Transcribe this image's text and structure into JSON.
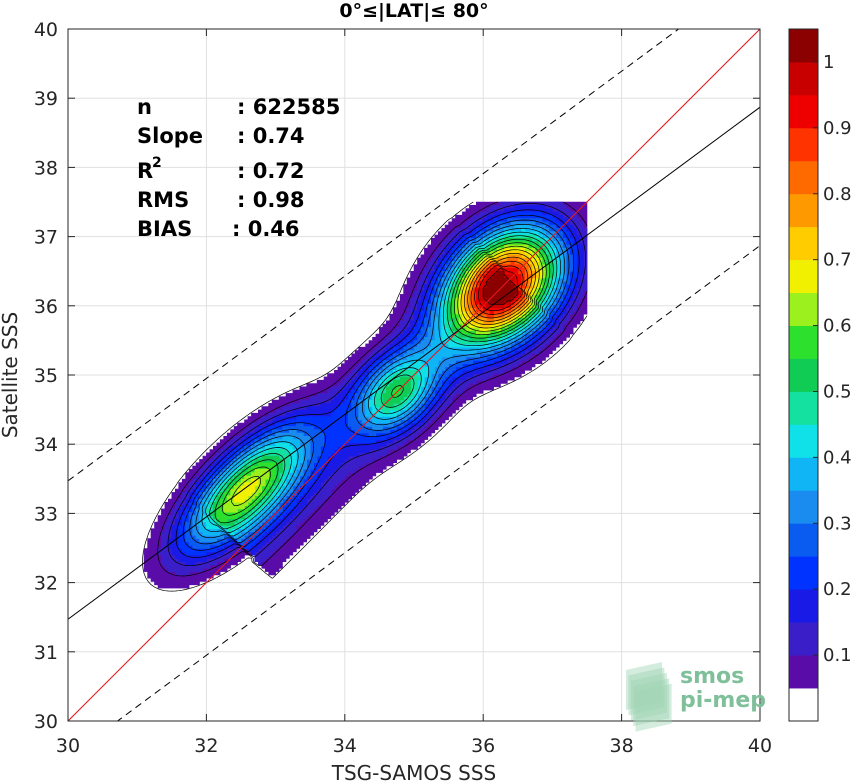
{
  "chart_data": {
    "type": "contour-scatter",
    "title": "0°≤|LAT|≤ 80°",
    "xlabel": "TSG-SAMOS SSS",
    "ylabel": "Satellite SSS",
    "xlim": [
      30,
      40
    ],
    "ylim": [
      30,
      40
    ],
    "x_ticks": [
      "30",
      "32",
      "34",
      "36",
      "38",
      "40"
    ],
    "y_ticks": [
      "30",
      "31",
      "32",
      "33",
      "34",
      "35",
      "36",
      "37",
      "38",
      "39",
      "40"
    ],
    "grid": true,
    "stats": [
      {
        "label": "n",
        "value": ": 622585"
      },
      {
        "label": "Slope",
        "value": ": 0.74"
      },
      {
        "label": "R",
        "sup": "2",
        "value": ": 0.72"
      },
      {
        "label": "RMS",
        "value": ": 0.98"
      },
      {
        "label": "BIAS",
        "value": ": 0.46"
      }
    ],
    "lines": {
      "identity": {
        "slope": 1,
        "intercept": 0,
        "color": "#e41a1c"
      },
      "regression": {
        "x": [
          30,
          40
        ],
        "y": [
          31.47,
          38.87
        ],
        "color": "#000000"
      },
      "bounds_upper": {
        "x": [
          30,
          40
        ],
        "y": [
          33.47,
          40.87
        ],
        "style": "dashed"
      },
      "bounds_lower": {
        "x": [
          30,
          40
        ],
        "y": [
          29.47,
          36.87
        ],
        "style": "dashed"
      }
    },
    "density_peaks": [
      {
        "x": 32.55,
        "y": 33.35,
        "peak": 0.62
      },
      {
        "x": 34.75,
        "y": 34.75,
        "peak": 0.42
      },
      {
        "x": 36.3,
        "y": 36.3,
        "peak": 1.0
      }
    ],
    "colorbar": {
      "levels": [
        0.05,
        0.1,
        0.15,
        0.2,
        0.25,
        0.3,
        0.35,
        0.4,
        0.45,
        0.5,
        0.55,
        0.6,
        0.65,
        0.7,
        0.75,
        0.8,
        0.85,
        0.9,
        0.95,
        1.0
      ],
      "colors": [
        "#ffffff",
        "#5a0ca8",
        "#3a1fc9",
        "#1a1ae6",
        "#0033ff",
        "#0a5bf0",
        "#1a8cf0",
        "#0fb5f5",
        "#10e0e8",
        "#14e0a0",
        "#10cc55",
        "#2ee02e",
        "#9cf01e",
        "#f0f000",
        "#ffcc00",
        "#ff9900",
        "#ff6a00",
        "#ff3300",
        "#ee0000",
        "#c80000",
        "#8b0000"
      ],
      "tick_labels": [
        "0.1",
        "0.2",
        "0.3",
        "0.4",
        "0.5",
        "0.6",
        "0.7",
        "0.8",
        "0.9",
        "1"
      ],
      "tick_values": [
        0.1,
        0.2,
        0.3,
        0.4,
        0.5,
        0.6,
        0.7,
        0.8,
        0.9,
        1.0
      ]
    }
  },
  "logo": {
    "line1": "smos",
    "line2": "pi-mep"
  }
}
